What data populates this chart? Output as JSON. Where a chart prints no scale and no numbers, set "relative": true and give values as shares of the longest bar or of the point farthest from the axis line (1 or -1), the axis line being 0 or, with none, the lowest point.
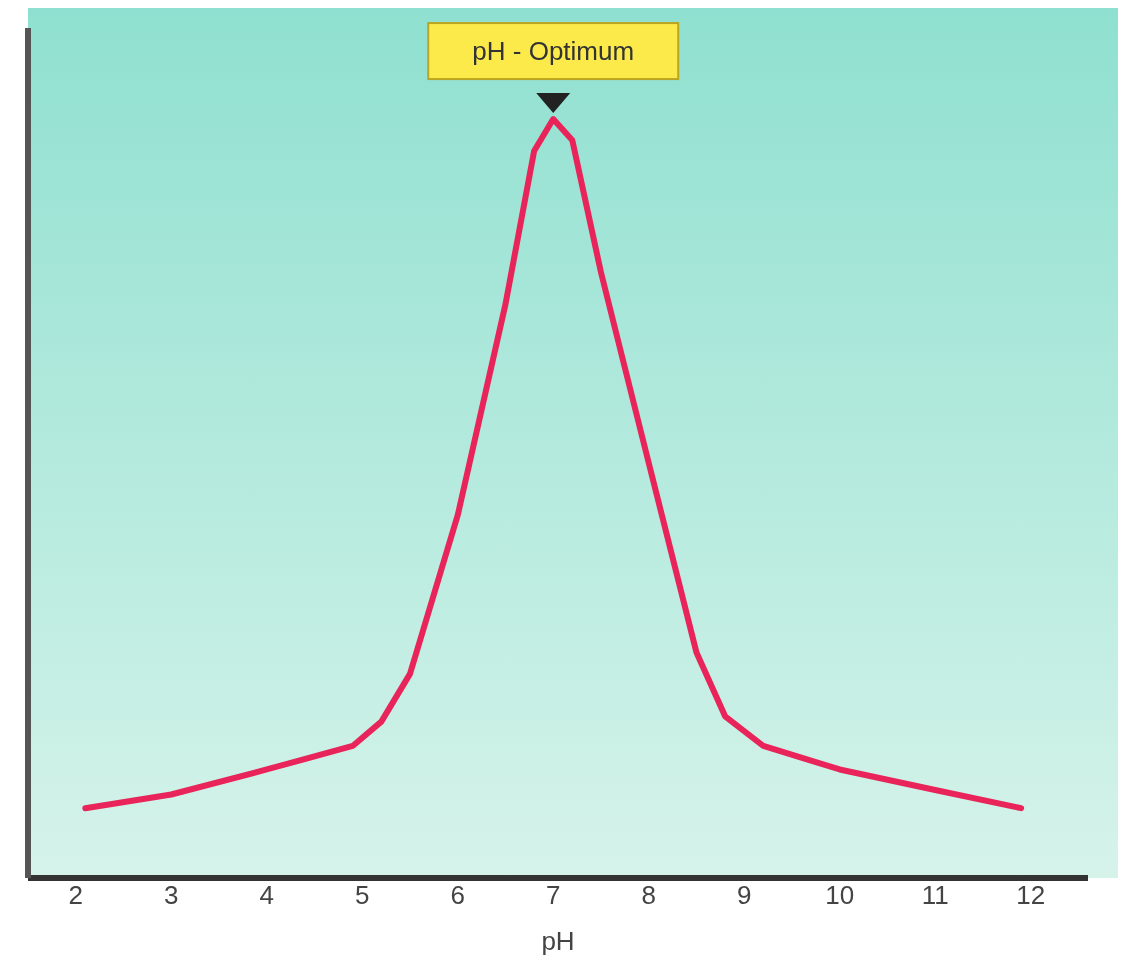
{
  "chart_data": {
    "type": "line",
    "relative": true,
    "xlabel": "pH",
    "xlim": [
      1.5,
      12.6
    ],
    "xticks": [
      2,
      3,
      4,
      5,
      6,
      7,
      8,
      9,
      10,
      11,
      12
    ],
    "grid": false,
    "legend": false,
    "marker": "none",
    "line_style": "solid",
    "annotations": [
      {
        "text": "pH - Optimum",
        "x": 7,
        "y": 1
      }
    ],
    "series": [
      {
        "color": "#e8245a",
        "x": [
          2.1,
          3,
          4,
          4.9,
          5.2,
          5.5,
          6,
          6.5,
          6.8,
          7,
          7.2,
          7.5,
          8,
          8.5,
          8.8,
          9.2,
          10,
          11,
          11.9
        ],
        "values": [
          0.092,
          0.11,
          0.143,
          0.174,
          0.206,
          0.269,
          0.478,
          0.756,
          0.958,
          1,
          0.972,
          0.798,
          0.547,
          0.297,
          0.213,
          0.174,
          0.143,
          0.116,
          0.092
        ]
      }
    ]
  }
}
